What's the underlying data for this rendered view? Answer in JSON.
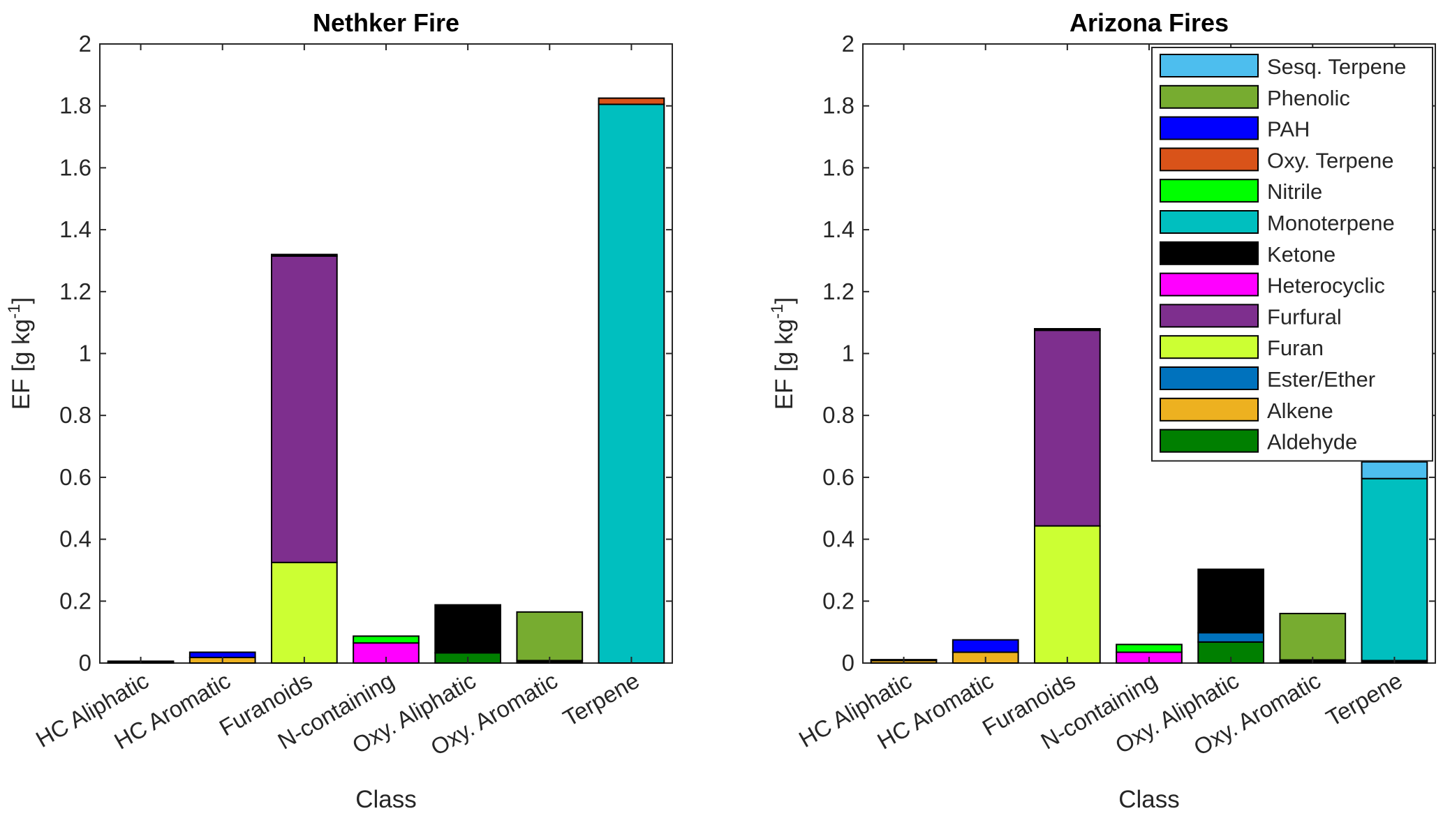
{
  "chart_data": [
    {
      "type": "bar",
      "stacked": true,
      "title": "Nethker Fire",
      "xlabel": "Class",
      "ylabel": "EF [g kg-1]",
      "ylabel_parts": {
        "main": "EF [g kg",
        "sup": "-1",
        "end": "]"
      },
      "ylim": [
        0,
        2
      ],
      "yticks": [
        "0",
        "0.2",
        "0.4",
        "0.6",
        "0.8",
        "1",
        "1.2",
        "1.4",
        "1.6",
        "1.8",
        "2"
      ],
      "grid": false,
      "legend": false,
      "categories": [
        "HC Aliphatic",
        "HC Aromatic",
        "Furanoids",
        "N-containing",
        "Oxy. Aliphatic",
        "Oxy. Aromatic",
        "Terpene"
      ],
      "series": [
        {
          "name": "Aldehyde",
          "color": "#007F00",
          "values": [
            0,
            0,
            0,
            0,
            0.033,
            0,
            0
          ]
        },
        {
          "name": "Alkene",
          "color": "#EDB120",
          "values": [
            0.003,
            0.018,
            0,
            0,
            0,
            0,
            0
          ]
        },
        {
          "name": "Ester/Ether",
          "color": "#0072BD",
          "values": [
            0,
            0,
            0,
            0,
            0,
            0,
            0
          ]
        },
        {
          "name": "Furan",
          "color": "#CCFF33",
          "values": [
            0,
            0,
            0.325,
            0,
            0,
            0,
            0
          ]
        },
        {
          "name": "Furfural",
          "color": "#7E2F8E",
          "values": [
            0,
            0,
            0.99,
            0,
            0,
            0,
            0
          ]
        },
        {
          "name": "Heterocyclic",
          "color": "#FF00FF",
          "values": [
            0,
            0,
            0,
            0.065,
            0,
            0,
            0
          ]
        },
        {
          "name": "Ketone",
          "color": "#000000",
          "values": [
            0.003,
            0,
            0.005,
            0,
            0.155,
            0.008,
            0
          ]
        },
        {
          "name": "Monoterpene",
          "color": "#00BFBF",
          "values": [
            0,
            0,
            0,
            0,
            0,
            0,
            1.805
          ]
        },
        {
          "name": "Nitrile",
          "color": "#00FF00",
          "values": [
            0,
            0,
            0,
            0.022,
            0,
            0,
            0
          ]
        },
        {
          "name": "Oxy. Terpene",
          "color": "#D95319",
          "values": [
            0,
            0,
            0,
            0,
            0,
            0,
            0.02
          ]
        },
        {
          "name": "PAH",
          "color": "#0000FF",
          "values": [
            0,
            0.017,
            0,
            0,
            0,
            0,
            0
          ]
        },
        {
          "name": "Phenolic",
          "color": "#77AC30",
          "values": [
            0,
            0,
            0,
            0,
            0,
            0.157,
            0
          ]
        },
        {
          "name": "Sesq. Terpene",
          "color": "#4DBEEE",
          "values": [
            0,
            0,
            0,
            0,
            0,
            0,
            0
          ]
        }
      ]
    },
    {
      "type": "bar",
      "stacked": true,
      "title": "Arizona Fires",
      "xlabel": "Class",
      "ylabel": "EF [g kg-1]",
      "ylabel_parts": {
        "main": "EF [g kg",
        "sup": "-1",
        "end": "]"
      },
      "ylim": [
        0,
        2
      ],
      "yticks": [
        "0",
        "0.2",
        "0.4",
        "0.6",
        "0.8",
        "1",
        "1.2",
        "1.4",
        "1.6",
        "1.8",
        "2"
      ],
      "grid": false,
      "legend": true,
      "legend_position": "top-right",
      "legend_order": [
        "Sesq. Terpene",
        "Phenolic",
        "PAH",
        "Oxy. Terpene",
        "Nitrile",
        "Monoterpene",
        "Ketone",
        "Heterocyclic",
        "Furfural",
        "Furan",
        "Ester/Ether",
        "Alkene",
        "Aldehyde"
      ],
      "categories": [
        "HC Aliphatic",
        "HC Aromatic",
        "Furanoids",
        "N-containing",
        "Oxy. Aliphatic",
        "Oxy. Aromatic",
        "Terpene"
      ],
      "series": [
        {
          "name": "Aldehyde",
          "color": "#007F00",
          "values": [
            0,
            0,
            0,
            0,
            0.068,
            0,
            0
          ]
        },
        {
          "name": "Alkene",
          "color": "#EDB120",
          "values": [
            0.008,
            0.035,
            0,
            0,
            0,
            0,
            0
          ]
        },
        {
          "name": "Ester/Ether",
          "color": "#0072BD",
          "values": [
            0,
            0,
            0,
            0,
            0.03,
            0,
            0
          ]
        },
        {
          "name": "Furan",
          "color": "#CCFF33",
          "values": [
            0,
            0,
            0.443,
            0,
            0,
            0,
            0
          ]
        },
        {
          "name": "Furfural",
          "color": "#7E2F8E",
          "values": [
            0,
            0,
            0.632,
            0,
            0,
            0,
            0
          ]
        },
        {
          "name": "Heterocyclic",
          "color": "#FF00FF",
          "values": [
            0,
            0,
            0,
            0.035,
            0,
            0,
            0
          ]
        },
        {
          "name": "Ketone",
          "color": "#000000",
          "values": [
            0.003,
            0,
            0.005,
            0,
            0.205,
            0.01,
            0.008
          ]
        },
        {
          "name": "Monoterpene",
          "color": "#00BFBF",
          "values": [
            0,
            0,
            0,
            0,
            0,
            0,
            0.588
          ]
        },
        {
          "name": "Nitrile",
          "color": "#00FF00",
          "values": [
            0,
            0,
            0,
            0.025,
            0,
            0,
            0
          ]
        },
        {
          "name": "Oxy. Terpene",
          "color": "#D95319",
          "values": [
            0,
            0,
            0,
            0,
            0,
            0,
            0
          ]
        },
        {
          "name": "PAH",
          "color": "#0000FF",
          "values": [
            0,
            0.04,
            0,
            0,
            0,
            0,
            0
          ]
        },
        {
          "name": "Phenolic",
          "color": "#77AC30",
          "values": [
            0,
            0,
            0,
            0,
            0,
            0.15,
            0
          ]
        },
        {
          "name": "Sesq. Terpene",
          "color": "#4DBEEE",
          "values": [
            0,
            0,
            0,
            0,
            0,
            0,
            0.054
          ]
        }
      ]
    }
  ]
}
